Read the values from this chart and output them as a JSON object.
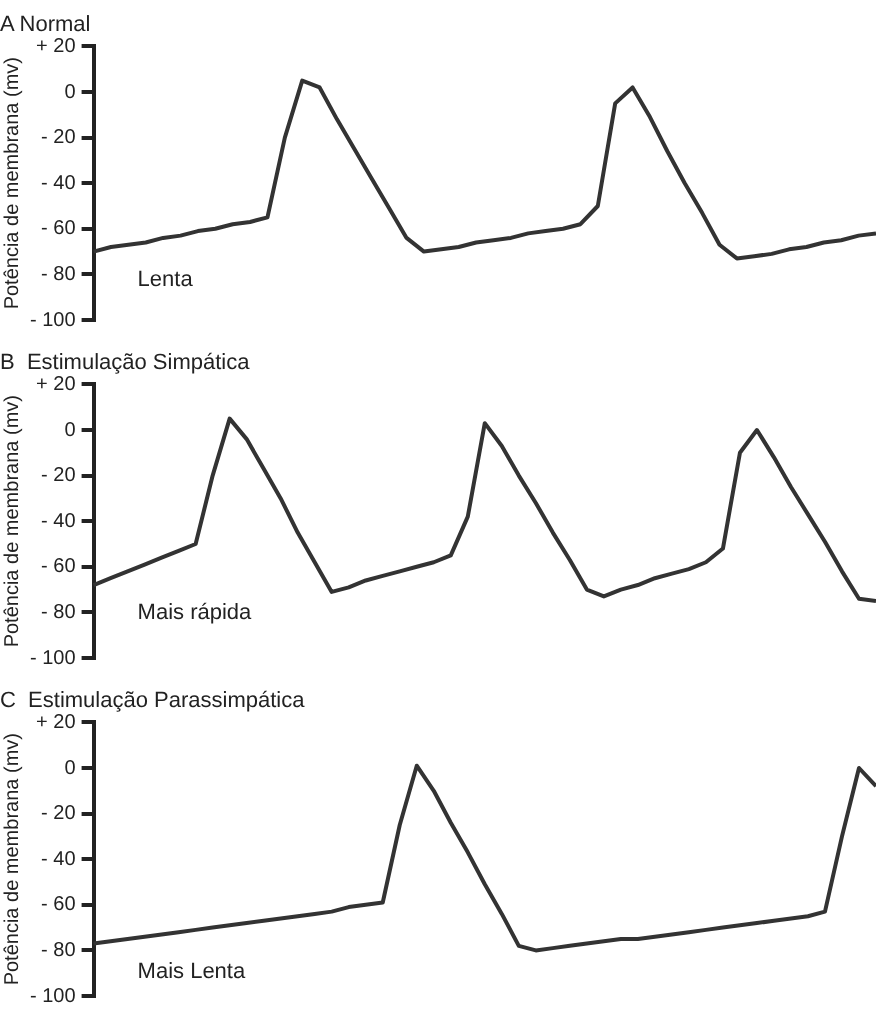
{
  "chart_data": [
    {
      "type": "line",
      "title": "A Normal",
      "ylabel": "Potência de membrana (mv)",
      "categories": [
        null,
        null,
        null,
        null,
        null,
        null,
        null,
        null,
        null,
        null,
        null,
        null,
        null,
        null,
        null,
        null,
        null,
        null,
        null,
        null,
        null,
        null,
        null,
        null,
        null,
        null,
        null,
        null,
        null,
        null,
        null,
        null,
        null,
        null,
        null,
        null,
        null,
        null,
        null,
        null,
        null,
        null,
        null,
        null,
        null,
        null
      ],
      "series": [
        {
          "color": "#333333",
          "values": [
            -70,
            -68,
            -67,
            -66,
            -64,
            -63,
            -61,
            -60,
            -58,
            -57,
            -55,
            -20,
            5,
            2,
            -12,
            -25,
            -38,
            -51,
            -64,
            -70,
            -69,
            -68,
            -66,
            -65,
            -64,
            -62,
            -61,
            -60,
            -58,
            -50,
            -5,
            2,
            -11,
            -26,
            -40,
            -53,
            -67,
            -73,
            -72,
            -71,
            -69,
            -68,
            -66,
            -65,
            -63,
            -62
          ]
        }
      ],
      "ylim": [
        -100,
        20
      ],
      "yticks": [
        {
          "value": 20,
          "label": "+ 20"
        },
        {
          "value": 0,
          "label": "0"
        },
        {
          "value": -20,
          "label": "- 20"
        },
        {
          "value": -40,
          "label": "- 40"
        },
        {
          "value": -60,
          "label": "- 60"
        },
        {
          "value": -80,
          "label": "- 80"
        },
        {
          "value": -100,
          "label": "- 100"
        }
      ],
      "tick_labels": "y",
      "grid": false,
      "legend": false,
      "marker": "none",
      "line_style": "solid",
      "annotations": [
        "Lenta"
      ]
    },
    {
      "type": "line",
      "title": "B  Estimulação Simpática",
      "ylabel": "Potência de membrana (mv)",
      "categories": [
        null,
        null,
        null,
        null,
        null,
        null,
        null,
        null,
        null,
        null,
        null,
        null,
        null,
        null,
        null,
        null,
        null,
        null,
        null,
        null,
        null,
        null,
        null,
        null,
        null,
        null,
        null,
        null,
        null,
        null,
        null,
        null,
        null,
        null,
        null,
        null,
        null,
        null,
        null,
        null,
        null,
        null,
        null,
        null,
        null,
        null,
        null
      ],
      "series": [
        {
          "color": "#333333",
          "values": [
            -68,
            -65,
            -62,
            -59,
            -56,
            -53,
            -50,
            -20,
            5,
            -4,
            -17,
            -30,
            -45,
            -58,
            -71,
            -69,
            -66,
            -64,
            -62,
            -60,
            -58,
            -55,
            -38,
            3,
            -7,
            -20,
            -32,
            -45,
            -57,
            -70,
            -73,
            -70,
            -68,
            -65,
            -63,
            -61,
            -58,
            -52,
            -10,
            0,
            -12,
            -25,
            -37,
            -49,
            -62,
            -74,
            -75
          ]
        }
      ],
      "ylim": [
        -100,
        20
      ],
      "yticks": [
        {
          "value": 20,
          "label": "+ 20"
        },
        {
          "value": 0,
          "label": "0"
        },
        {
          "value": -20,
          "label": "- 20"
        },
        {
          "value": -40,
          "label": "- 40"
        },
        {
          "value": -60,
          "label": "- 60"
        },
        {
          "value": -80,
          "label": "- 80"
        },
        {
          "value": -100,
          "label": "- 100"
        }
      ],
      "tick_labels": "y",
      "grid": false,
      "legend": false,
      "marker": "none",
      "line_style": "solid",
      "annotations": [
        "Mais rápida"
      ]
    },
    {
      "type": "line",
      "title": "C  Estimulação Parassimpática",
      "ylabel": "Potência de membrana (mv)",
      "categories": [
        null,
        null,
        null,
        null,
        null,
        null,
        null,
        null,
        null,
        null,
        null,
        null,
        null,
        null,
        null,
        null,
        null,
        null,
        null,
        null,
        null,
        null,
        null,
        null,
        null,
        null,
        null,
        null,
        null,
        null,
        null,
        null,
        null,
        null,
        null,
        null,
        null,
        null,
        null,
        null,
        null,
        null,
        null,
        null,
        null,
        null,
        null
      ],
      "series": [
        {
          "color": "#333333",
          "values": [
            -77,
            -76,
            -75,
            -74,
            -73,
            -72,
            -71,
            -70,
            -69,
            -68,
            -67,
            -66,
            -65,
            -64,
            -63,
            -61,
            -60,
            -59,
            -25,
            1,
            -10,
            -24,
            -37,
            -51,
            -64,
            -78,
            -80,
            -79,
            -78,
            -77,
            -76,
            -75,
            -75,
            -74,
            -73,
            -72,
            -71,
            -70,
            -69,
            -68,
            -67,
            -66,
            -65,
            -63,
            -30,
            0,
            -8
          ]
        }
      ],
      "ylim": [
        -100,
        20
      ],
      "yticks": [
        {
          "value": 20,
          "label": "+ 20"
        },
        {
          "value": 0,
          "label": "0"
        },
        {
          "value": -20,
          "label": "- 20"
        },
        {
          "value": -40,
          "label": "- 40"
        },
        {
          "value": -60,
          "label": "- 60"
        },
        {
          "value": -80,
          "label": "- 80"
        },
        {
          "value": -100,
          "label": "- 100"
        }
      ],
      "tick_labels": "y",
      "grid": false,
      "legend": false,
      "marker": "none",
      "line_style": "solid",
      "annotations": [
        "Mais Lenta"
      ]
    }
  ]
}
